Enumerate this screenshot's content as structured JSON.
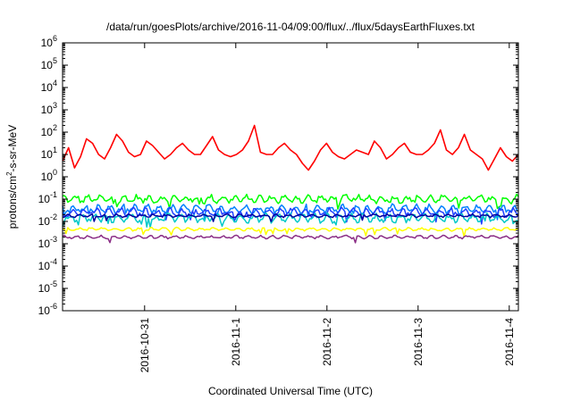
{
  "chart_data": {
    "type": "line",
    "title": "/data/run/goesPlots/archive/2016-11-04/09:00/flux/../flux/5daysEarthFluxes.txt",
    "xlabel": "Coordinated Universal Time (UTC)",
    "ylabel": {
      "prefix": "protons/cm",
      "sup": "2",
      "suffix": "-s-sr-MeV"
    },
    "yscale": "log",
    "ylim_exp": [
      -6,
      6
    ],
    "ytick_labels": [
      {
        "base": "10",
        "exp": "-6"
      },
      {
        "base": "10",
        "exp": "-5"
      },
      {
        "base": "10",
        "exp": "-4"
      },
      {
        "base": "10",
        "exp": "-3"
      },
      {
        "base": "10",
        "exp": "-2"
      },
      {
        "base": "10",
        "exp": "-1"
      },
      {
        "base": "10",
        "exp": "0"
      },
      {
        "base": "10",
        "exp": "1"
      },
      {
        "base": "10",
        "exp": "2"
      },
      {
        "base": "10",
        "exp": "3"
      },
      {
        "base": "10",
        "exp": "4"
      },
      {
        "base": "10",
        "exp": "5"
      },
      {
        "base": "10",
        "exp": "6"
      }
    ],
    "xlim_days": [
      0,
      5
    ],
    "x_ticks": [
      {
        "label": "2016-10-31",
        "day": 0.9
      },
      {
        "label": "2016-11-1",
        "day": 1.9
      },
      {
        "label": "2016-11-2",
        "day": 2.9
      },
      {
        "label": "2016-11-3",
        "day": 3.9
      },
      {
        "label": "2016-11-4",
        "day": 4.9
      }
    ],
    "grid": false,
    "legend": "none",
    "series": [
      {
        "color": "#ff0000",
        "log10_base": 1.0,
        "variation": "large",
        "log10_points": [
          0.7,
          1.3,
          0.4,
          0.9,
          1.7,
          1.5,
          1.0,
          0.8,
          1.3,
          1.9,
          1.6,
          1.1,
          0.9,
          1.0,
          1.6,
          1.4,
          1.1,
          0.8,
          1.0,
          1.3,
          1.5,
          1.2,
          1.0,
          1.0,
          1.4,
          1.8,
          1.2,
          1.0,
          0.9,
          1.0,
          1.2,
          1.6,
          2.3,
          1.1,
          1.0,
          1.0,
          1.3,
          1.5,
          1.2,
          1.0,
          0.6,
          0.3,
          0.7,
          1.2,
          1.5,
          1.1,
          0.9,
          0.8,
          1.0,
          1.2,
          1.1,
          1.0,
          1.6,
          1.3,
          0.8,
          1.0,
          1.3,
          1.5,
          1.1,
          1.0,
          1.0,
          1.2,
          1.5,
          2.1,
          1.2,
          1.0,
          1.3,
          1.9,
          1.2,
          1.0,
          0.8,
          0.3,
          0.8,
          1.3,
          0.9,
          0.7,
          1.0
        ]
      },
      {
        "color": "#00ff00",
        "log10_base": -1.0,
        "variation": "moderate"
      },
      {
        "color": "#0080ff",
        "log10_base": -1.45,
        "variation": "moderate"
      },
      {
        "color": "#2040ff",
        "log10_base": -1.6,
        "variation": "moderate"
      },
      {
        "color": "#00c8c8",
        "log10_base": -1.85,
        "variation": "moderate"
      },
      {
        "color": "#0000a0",
        "log10_base": -1.75,
        "variation": "small"
      },
      {
        "color": "#ffff00",
        "log10_base": -2.35,
        "variation": "small"
      },
      {
        "color": "#8b2e86",
        "log10_base": -2.7,
        "variation": "small"
      }
    ]
  }
}
